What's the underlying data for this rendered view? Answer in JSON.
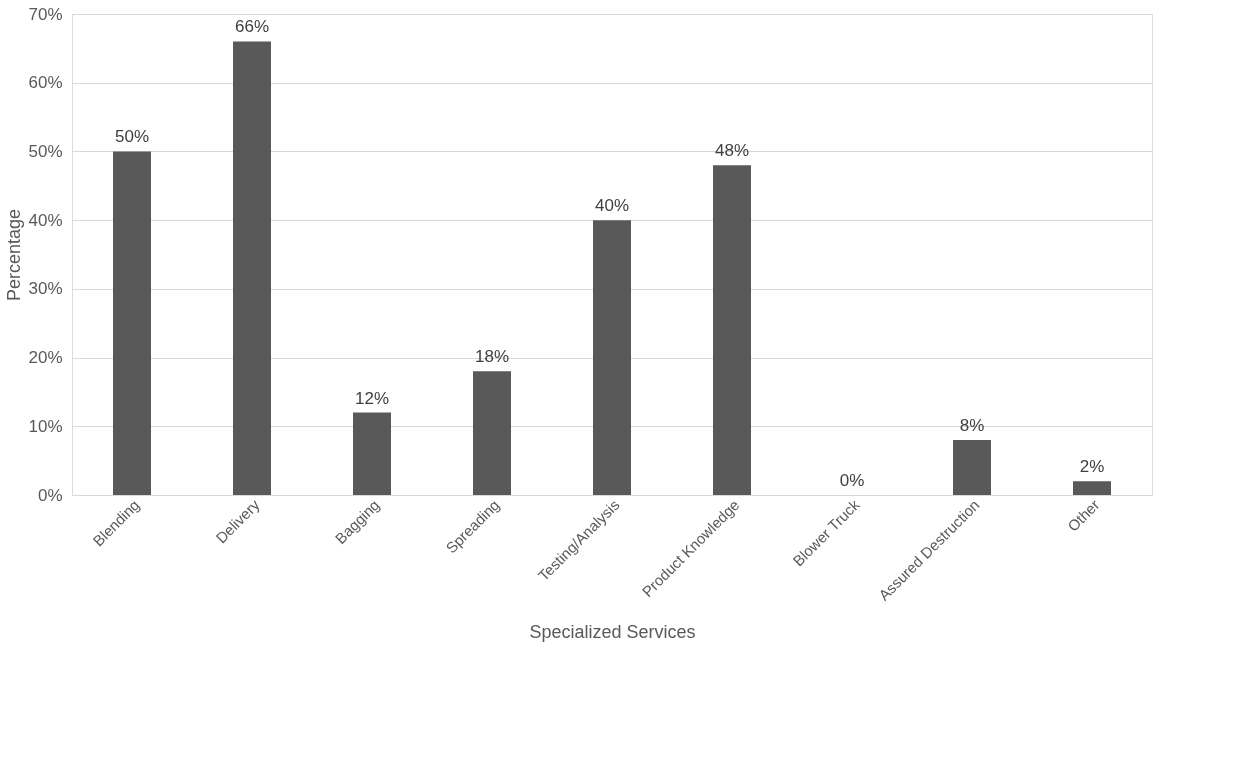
{
  "chart_data": {
    "type": "bar",
    "xlabel": "Specialized Services",
    "ylabel": "Percentage",
    "categories": [
      "Blending",
      "Delivery",
      "Bagging",
      "Spreading",
      "Testing/Analysis",
      "Product Knowledge",
      "Blower Truck",
      "Assured Destruction",
      "Other"
    ],
    "values": [
      50,
      66,
      12,
      18,
      40,
      48,
      0,
      8,
      2
    ],
    "value_labels": [
      "50%",
      "66%",
      "12%",
      "18%",
      "40%",
      "48%",
      "0%",
      "8%",
      "2%"
    ],
    "color": "#595959",
    "ylim": [
      0,
      70
    ],
    "yticks": [
      {
        "value": 0,
        "label": "0%"
      },
      {
        "value": 10,
        "label": "10%"
      },
      {
        "value": 20,
        "label": "20%"
      },
      {
        "value": 30,
        "label": "30%"
      },
      {
        "value": 40,
        "label": "40%"
      },
      {
        "value": 50,
        "label": "50%"
      },
      {
        "value": 60,
        "label": "60%"
      },
      {
        "value": 70,
        "label": "70%"
      }
    ],
    "grid": "y"
  }
}
